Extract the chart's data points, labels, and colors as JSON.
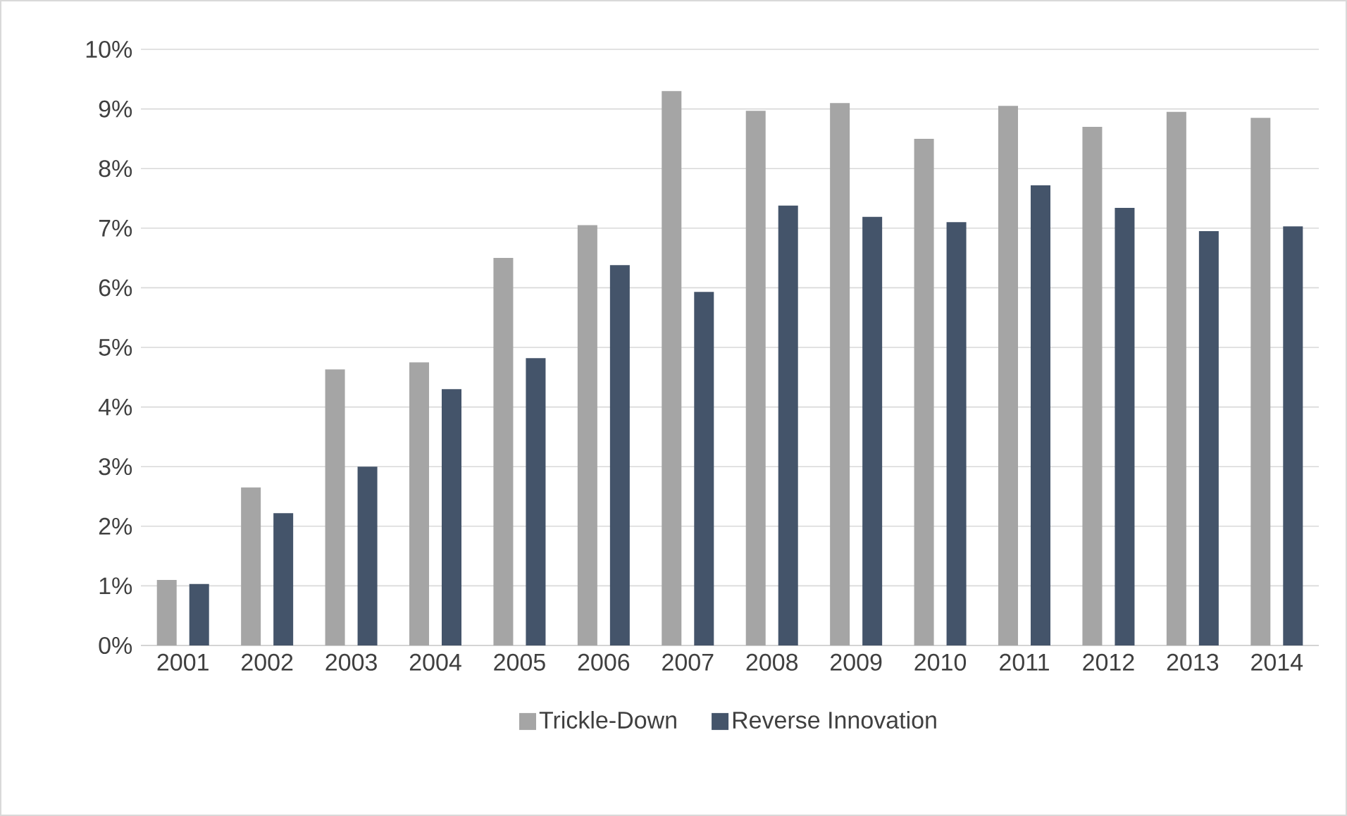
{
  "chart_data": {
    "type": "bar",
    "categories": [
      "2001",
      "2002",
      "2003",
      "2004",
      "2005",
      "2006",
      "2007",
      "2008",
      "2009",
      "2010",
      "2011",
      "2012",
      "2013",
      "2014"
    ],
    "series": [
      {
        "name": "Trickle-Down",
        "color": "#a5a5a5",
        "values": [
          1.1,
          2.65,
          4.63,
          4.75,
          6.5,
          7.05,
          9.3,
          8.97,
          9.1,
          8.5,
          9.05,
          8.7,
          8.95,
          8.85
        ]
      },
      {
        "name": "Reverse Innovation",
        "color": "#44546a",
        "values": [
          1.03,
          2.22,
          3.0,
          4.3,
          4.82,
          6.38,
          5.93,
          7.38,
          7.19,
          7.1,
          7.72,
          7.34,
          6.95,
          7.03
        ]
      }
    ],
    "ylim": [
      0,
      10
    ],
    "yticks": [
      {
        "value": 0,
        "label": "0%"
      },
      {
        "value": 1,
        "label": "1%"
      },
      {
        "value": 2,
        "label": "2%"
      },
      {
        "value": 3,
        "label": "3%"
      },
      {
        "value": 4,
        "label": "4%"
      },
      {
        "value": 5,
        "label": "5%"
      },
      {
        "value": 6,
        "label": "6%"
      },
      {
        "value": 7,
        "label": "7%"
      },
      {
        "value": 8,
        "label": "8%"
      },
      {
        "value": 9,
        "label": "9%"
      },
      {
        "value": 10,
        "label": "10%"
      }
    ],
    "grid": "y",
    "legend": "bottom"
  }
}
